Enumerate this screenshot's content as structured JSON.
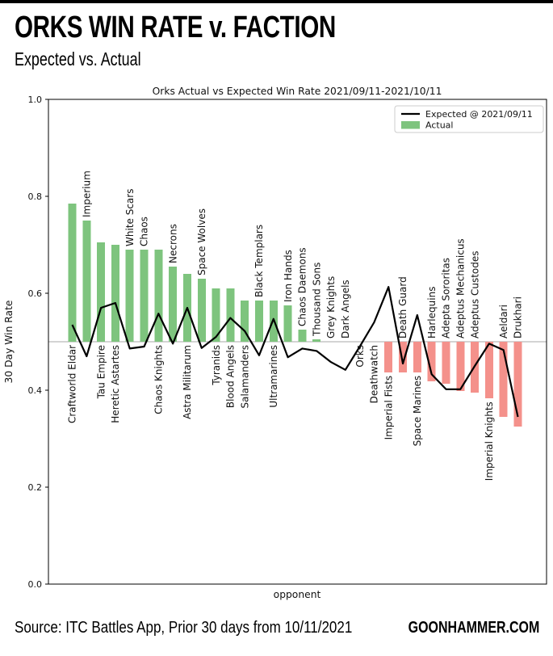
{
  "page": {
    "title": "ORKS WIN RATE v. FACTION",
    "subtitle": "Expected vs. Actual",
    "source": "Source: ITC Battles App, Prior 30 days from 10/11/2021",
    "brand": "GOONHAMMER.COM"
  },
  "chart_data": {
    "type": "bar",
    "title": "Orks Actual vs Expected Win Rate 2021/09/11-2021/10/11",
    "xlabel": "opponent",
    "ylabel": "30 Day Win Rate",
    "ylim": [
      0.0,
      1.0
    ],
    "yticks": [
      "0.0",
      "0.2",
      "0.4",
      "0.6",
      "0.8",
      "1.0"
    ],
    "baseline": 0.5,
    "grid": "baseline-only",
    "legend_position": "top-right",
    "legend": [
      {
        "label": "Expected @ 2021/09/11",
        "swatch": "line",
        "color": "#000000"
      },
      {
        "label": "Actual",
        "swatch": "patch",
        "color": "#7ec47e"
      }
    ],
    "colors": {
      "bar_above_baseline": "#7ec47e",
      "bar_below_baseline": "#f4918b",
      "expected_line": "#000000",
      "baseline_line": "#aaaaaa",
      "legend_border": "#cccccc"
    },
    "categories": [
      "Craftworld Eldar",
      "Imperium",
      "Tau Empire",
      "Heretic Astartes",
      "White Scars",
      "Chaos",
      "Chaos Knights",
      "Necrons",
      "Astra Militarum",
      "Space Wolves",
      "Tyranids",
      "Blood Angels",
      "Salamanders",
      "Black Templars",
      "Ultramarines",
      "Iron Hands",
      "Chaos Daemons",
      "Thousand Sons",
      "Grey Knights",
      "Dark Angels",
      "Orks",
      "Deathwatch",
      "Imperial Fists",
      "Death Guard",
      "Space Marines",
      "Harlequins",
      "Adepta Sororitas",
      "Adeptus Mechanicus",
      "Adeptus Custodes",
      "Imperial Knights",
      "Aeldari",
      "Drukhari"
    ],
    "label_side": [
      "below",
      "above",
      "below",
      "below",
      "above",
      "above",
      "below",
      "above",
      "below",
      "above",
      "below",
      "below",
      "below",
      "above",
      "below",
      "above",
      "above",
      "above",
      "above",
      "above",
      "below",
      "below",
      "below",
      "above",
      "below",
      "above",
      "above",
      "above",
      "above",
      "below",
      "above",
      "above"
    ],
    "series": [
      {
        "name": "Actual",
        "type": "bar",
        "values": [
          0.785,
          0.75,
          0.705,
          0.7,
          0.69,
          0.69,
          0.69,
          0.655,
          0.64,
          0.63,
          0.61,
          0.61,
          0.585,
          0.585,
          0.585,
          0.575,
          0.525,
          0.505,
          0.5,
          0.5,
          0.5,
          0.5,
          0.437,
          0.437,
          0.437,
          0.418,
          0.413,
          0.398,
          0.395,
          0.383,
          0.345,
          0.325
        ]
      },
      {
        "name": "Expected @ 2021/09/11",
        "type": "line",
        "values": [
          0.535,
          0.47,
          0.57,
          0.58,
          0.486,
          0.49,
          0.558,
          0.496,
          0.57,
          0.487,
          0.51,
          0.549,
          0.522,
          0.472,
          0.547,
          0.468,
          0.486,
          0.481,
          0.458,
          0.442,
          0.49,
          0.54,
          0.613,
          0.455,
          0.555,
          0.433,
          0.402,
          0.402,
          0.45,
          0.496,
          0.483,
          0.345
        ]
      }
    ]
  }
}
